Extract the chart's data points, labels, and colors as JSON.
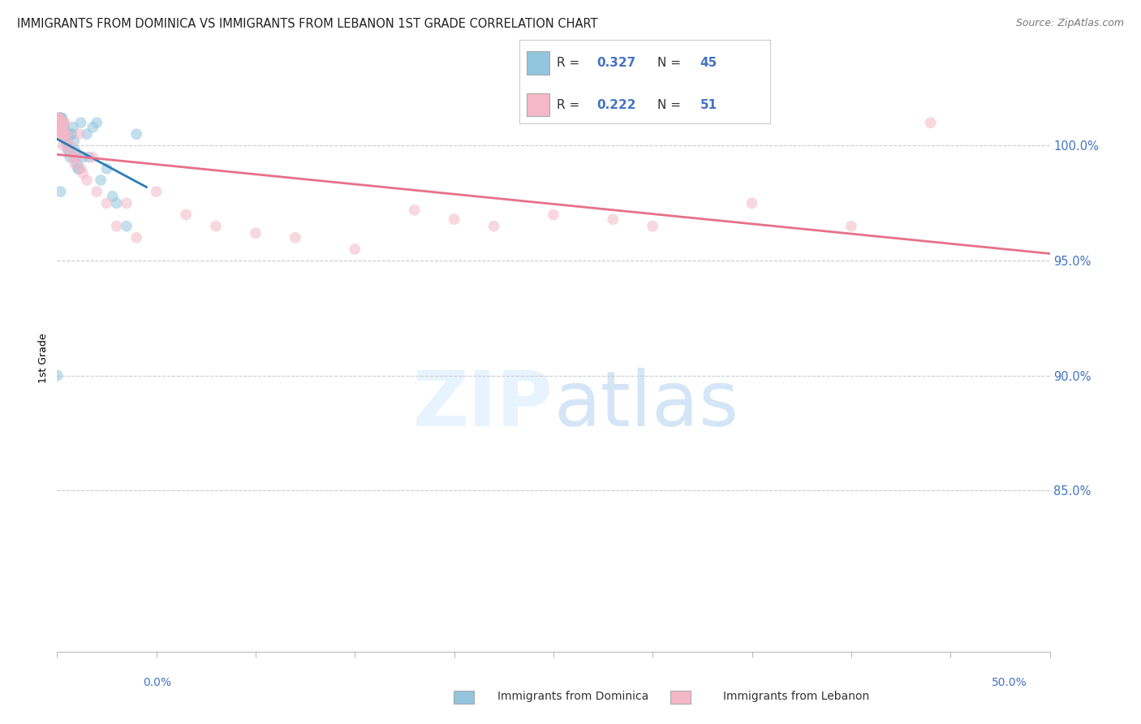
{
  "title": "IMMIGRANTS FROM DOMINICA VS IMMIGRANTS FROM LEBANON 1ST GRADE CORRELATION CHART",
  "source": "Source: ZipAtlas.com",
  "ylabel": "1st Grade",
  "y_ticks": [
    80.0,
    85.0,
    90.0,
    95.0,
    100.0
  ],
  "y_tick_labels": [
    "",
    "85.0%",
    "90.0%",
    "95.0%",
    "100.0%"
  ],
  "xlim": [
    0.0,
    50.0
  ],
  "ylim": [
    78.0,
    103.5
  ],
  "series_dominica": {
    "label": "Immigrants from Dominica",
    "R": 0.327,
    "N": 45,
    "color": "#92c5de",
    "trend_color": "#2c7bb6",
    "x": [
      0.02,
      0.05,
      0.08,
      0.1,
      0.12,
      0.15,
      0.18,
      0.2,
      0.22,
      0.25,
      0.28,
      0.3,
      0.32,
      0.35,
      0.38,
      0.4,
      0.42,
      0.45,
      0.48,
      0.5,
      0.55,
      0.6,
      0.65,
      0.7,
      0.75,
      0.8,
      0.85,
      0.9,
      0.95,
      1.0,
      1.05,
      1.1,
      1.2,
      1.3,
      1.5,
      1.6,
      1.8,
      2.0,
      2.2,
      2.5,
      2.8,
      3.0,
      3.5,
      4.0,
      0.18
    ],
    "y": [
      90.0,
      101.0,
      101.2,
      101.2,
      101.2,
      101.2,
      101.2,
      101.2,
      101.0,
      101.2,
      101.0,
      100.8,
      100.5,
      100.8,
      100.5,
      100.5,
      100.5,
      100.2,
      100.0,
      100.2,
      99.8,
      99.8,
      99.5,
      100.5,
      100.5,
      100.8,
      100.2,
      99.8,
      99.5,
      99.2,
      99.0,
      99.0,
      101.0,
      99.5,
      100.5,
      99.5,
      100.8,
      101.0,
      98.5,
      99.0,
      97.8,
      97.5,
      96.5,
      100.5,
      98.0
    ]
  },
  "series_lebanon": {
    "label": "Immigrants from Lebanon",
    "R": 0.222,
    "N": 51,
    "color": "#f4a582",
    "trend_color": "#d6604d",
    "x": [
      0.05,
      0.08,
      0.1,
      0.12,
      0.15,
      0.18,
      0.2,
      0.22,
      0.25,
      0.28,
      0.3,
      0.32,
      0.35,
      0.38,
      0.4,
      0.45,
      0.5,
      0.6,
      0.7,
      0.8,
      0.9,
      1.0,
      1.1,
      1.2,
      1.3,
      1.5,
      1.8,
      2.0,
      2.5,
      3.0,
      3.5,
      4.0,
      5.0,
      6.5,
      8.0,
      10.0,
      12.0,
      15.0,
      18.0,
      20.0,
      22.0,
      25.0,
      28.0,
      30.0,
      35.0,
      40.0,
      44.0,
      0.15,
      0.2,
      0.25,
      0.3
    ],
    "y": [
      101.2,
      101.2,
      101.0,
      101.2,
      101.0,
      101.0,
      100.8,
      100.8,
      100.5,
      100.5,
      100.8,
      100.5,
      101.0,
      101.0,
      100.5,
      100.5,
      100.2,
      99.8,
      100.0,
      99.5,
      99.2,
      99.5,
      100.5,
      99.0,
      98.8,
      98.5,
      99.5,
      98.0,
      97.5,
      96.5,
      97.5,
      96.0,
      98.0,
      97.0,
      96.5,
      96.2,
      96.0,
      95.5,
      97.2,
      96.8,
      96.5,
      97.0,
      96.8,
      96.5,
      97.5,
      96.5,
      101.0,
      100.8,
      100.5,
      100.5,
      100.0
    ]
  },
  "dom_trend_xlim": [
    0.0,
    4.5
  ],
  "leb_trend_xlim": [
    0.0,
    50.0
  ]
}
